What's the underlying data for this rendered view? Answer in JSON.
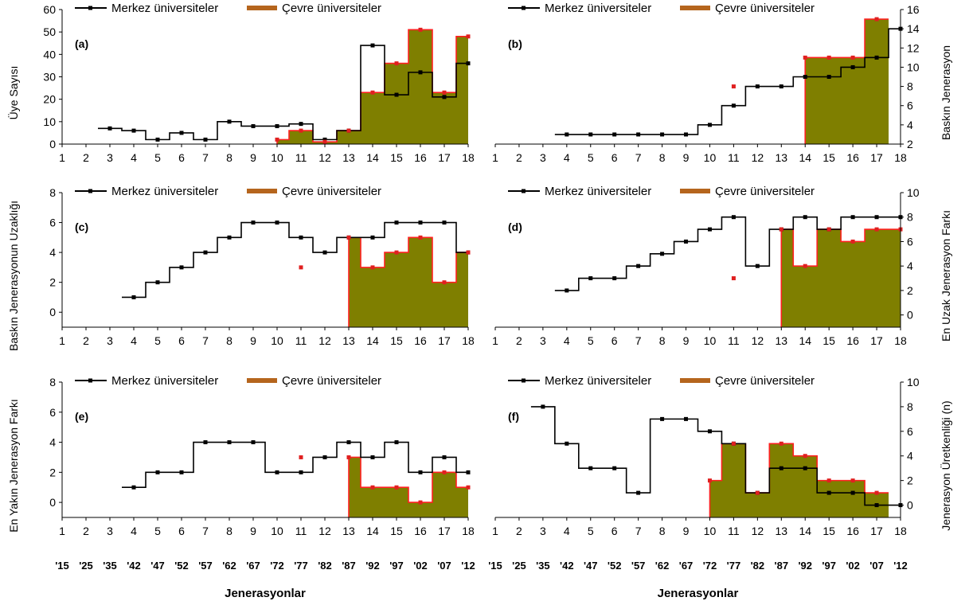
{
  "colors": {
    "merkez": "#000000",
    "cevre_line": "#ff2020",
    "fill": "#7f7f00",
    "marker_cevre": "#e02020",
    "legend_swatch": "#b5651d"
  },
  "legend": {
    "merkez": "Merkez üniversiteler",
    "cevre": "Çevre üniversiteler"
  },
  "x_labels": [
    "1",
    "2",
    "3",
    "4",
    "5",
    "6",
    "7",
    "8",
    "9",
    "10",
    "11",
    "12",
    "13",
    "14",
    "15",
    "16",
    "17",
    "18"
  ],
  "gen_labels": [
    "'15",
    "'25",
    "'35",
    "'42",
    "'47",
    "'52",
    "'57",
    "'62",
    "'67",
    "'72",
    "'77",
    "'82",
    "'87",
    "'92",
    "'97",
    "'02",
    "'07",
    "'12"
  ],
  "x_title": "Jenerasyonlar",
  "chart_data": [
    {
      "id": "a",
      "type": "line",
      "panel_label": "(a)",
      "ylabel": "Üye Sayısı",
      "axis_side": "left",
      "ylim": [
        0,
        60
      ],
      "yticks": [
        0,
        10,
        20,
        30,
        40,
        50,
        60
      ],
      "merkez": [
        [
          3,
          7
        ],
        [
          4,
          6
        ],
        [
          5,
          2
        ],
        [
          6,
          5
        ],
        [
          7,
          2
        ],
        [
          8,
          10
        ],
        [
          9,
          8
        ],
        [
          10,
          8
        ],
        [
          11,
          9
        ],
        [
          12,
          2
        ],
        [
          13,
          6
        ],
        [
          14,
          44
        ],
        [
          15,
          22
        ],
        [
          16,
          32
        ],
        [
          17,
          21
        ],
        [
          18,
          36
        ]
      ],
      "cevre": [
        [
          10,
          2
        ],
        [
          11,
          6
        ],
        [
          12,
          1
        ],
        [
          13,
          6
        ],
        [
          14,
          23
        ],
        [
          15,
          36
        ],
        [
          16,
          51
        ],
        [
          17,
          23
        ],
        [
          18,
          48
        ]
      ]
    },
    {
      "id": "b",
      "type": "line",
      "panel_label": "(b)",
      "ylabel": "Baskın Jenerasyon",
      "axis_side": "right",
      "ylim": [
        2,
        16
      ],
      "yticks": [
        2,
        4,
        6,
        8,
        10,
        12,
        14,
        16
      ],
      "merkez": [
        [
          4,
          3
        ],
        [
          5,
          3
        ],
        [
          6,
          3
        ],
        [
          7,
          3
        ],
        [
          8,
          3
        ],
        [
          9,
          3
        ],
        [
          10,
          4
        ],
        [
          11,
          6
        ],
        [
          12,
          8
        ],
        [
          13,
          8
        ],
        [
          14,
          9
        ],
        [
          15,
          9
        ],
        [
          16,
          10
        ],
        [
          17,
          11
        ],
        [
          18,
          14
        ]
      ],
      "cevre": [
        [
          11,
          8
        ],
        [
          14,
          11
        ],
        [
          15,
          11
        ],
        [
          16,
          11
        ],
        [
          17,
          15
        ]
      ],
      "fill_from": 13
    },
    {
      "id": "c",
      "type": "line",
      "panel_label": "(c)",
      "ylabel": "Baskın Jenerasyonun Uzaklığı",
      "axis_side": "left",
      "ylim": [
        -1,
        8
      ],
      "yticks": [
        0,
        2,
        4,
        6,
        8
      ],
      "merkez": [
        [
          4,
          1
        ],
        [
          5,
          2
        ],
        [
          6,
          3
        ],
        [
          7,
          4
        ],
        [
          8,
          5
        ],
        [
          9,
          6
        ],
        [
          10,
          6
        ],
        [
          11,
          5
        ],
        [
          12,
          4
        ],
        [
          13,
          5
        ],
        [
          14,
          5
        ],
        [
          15,
          6
        ],
        [
          16,
          6
        ],
        [
          17,
          6
        ],
        [
          18,
          4
        ]
      ],
      "cevre": [
        [
          11,
          3
        ],
        [
          13,
          5
        ],
        [
          14,
          3
        ],
        [
          15,
          4
        ],
        [
          16,
          5
        ],
        [
          17,
          2
        ],
        [
          18,
          4
        ]
      ],
      "fill_from": 13
    },
    {
      "id": "d",
      "type": "line",
      "panel_label": "(d)",
      "ylabel": "En Uzak Jenerasyon Farkı",
      "axis_side": "right",
      "ylim": [
        -1,
        10
      ],
      "yticks": [
        0,
        2,
        4,
        6,
        8,
        10
      ],
      "merkez": [
        [
          4,
          2
        ],
        [
          5,
          3
        ],
        [
          6,
          3
        ],
        [
          7,
          4
        ],
        [
          8,
          5
        ],
        [
          9,
          6
        ],
        [
          10,
          7
        ],
        [
          11,
          8
        ],
        [
          12,
          4
        ],
        [
          13,
          7
        ],
        [
          14,
          8
        ],
        [
          15,
          7
        ],
        [
          16,
          8
        ],
        [
          17,
          8
        ],
        [
          18,
          8
        ]
      ],
      "cevre": [
        [
          11,
          3
        ],
        [
          13,
          7
        ],
        [
          14,
          4
        ],
        [
          15,
          7
        ],
        [
          16,
          6
        ],
        [
          17,
          7
        ],
        [
          18,
          7
        ]
      ],
      "fill_from": 13
    },
    {
      "id": "e",
      "type": "line",
      "panel_label": "(e)",
      "ylabel": "En Yakın Jenerasyon Farkı",
      "axis_side": "left",
      "ylim": [
        -1,
        8
      ],
      "yticks": [
        0,
        2,
        4,
        6,
        8
      ],
      "merkez": [
        [
          4,
          1
        ],
        [
          5,
          2
        ],
        [
          6,
          2
        ],
        [
          7,
          4
        ],
        [
          8,
          4
        ],
        [
          9,
          4
        ],
        [
          10,
          2
        ],
        [
          11,
          2
        ],
        [
          12,
          3
        ],
        [
          13,
          4
        ],
        [
          14,
          3
        ],
        [
          15,
          4
        ],
        [
          16,
          2
        ],
        [
          17,
          3
        ],
        [
          18,
          2
        ]
      ],
      "cevre": [
        [
          11,
          3
        ],
        [
          13,
          3
        ],
        [
          14,
          1
        ],
        [
          15,
          1
        ],
        [
          16,
          0
        ],
        [
          17,
          2
        ],
        [
          18,
          1
        ]
      ],
      "fill_from": 13
    },
    {
      "id": "f",
      "type": "line",
      "panel_label": "(f)",
      "ylabel": "Jenerasyon Üretkenliği (n)",
      "axis_side": "right",
      "ylim": [
        -1,
        10
      ],
      "yticks": [
        0,
        2,
        4,
        6,
        8,
        10
      ],
      "merkez": [
        [
          3,
          8
        ],
        [
          4,
          5
        ],
        [
          5,
          3
        ],
        [
          6,
          3
        ],
        [
          7,
          1
        ],
        [
          8,
          7
        ],
        [
          9,
          7
        ],
        [
          10,
          6
        ],
        [
          11,
          5
        ],
        [
          12,
          1
        ],
        [
          13,
          3
        ],
        [
          14,
          3
        ],
        [
          15,
          1
        ],
        [
          16,
          1
        ],
        [
          17,
          0
        ],
        [
          18,
          0
        ]
      ],
      "cevre": [
        [
          10,
          2
        ],
        [
          11,
          5
        ],
        [
          12,
          1
        ],
        [
          13,
          5
        ],
        [
          14,
          4
        ],
        [
          15,
          2
        ],
        [
          16,
          2
        ],
        [
          17,
          1
        ]
      ],
      "fill_from": 10
    }
  ]
}
